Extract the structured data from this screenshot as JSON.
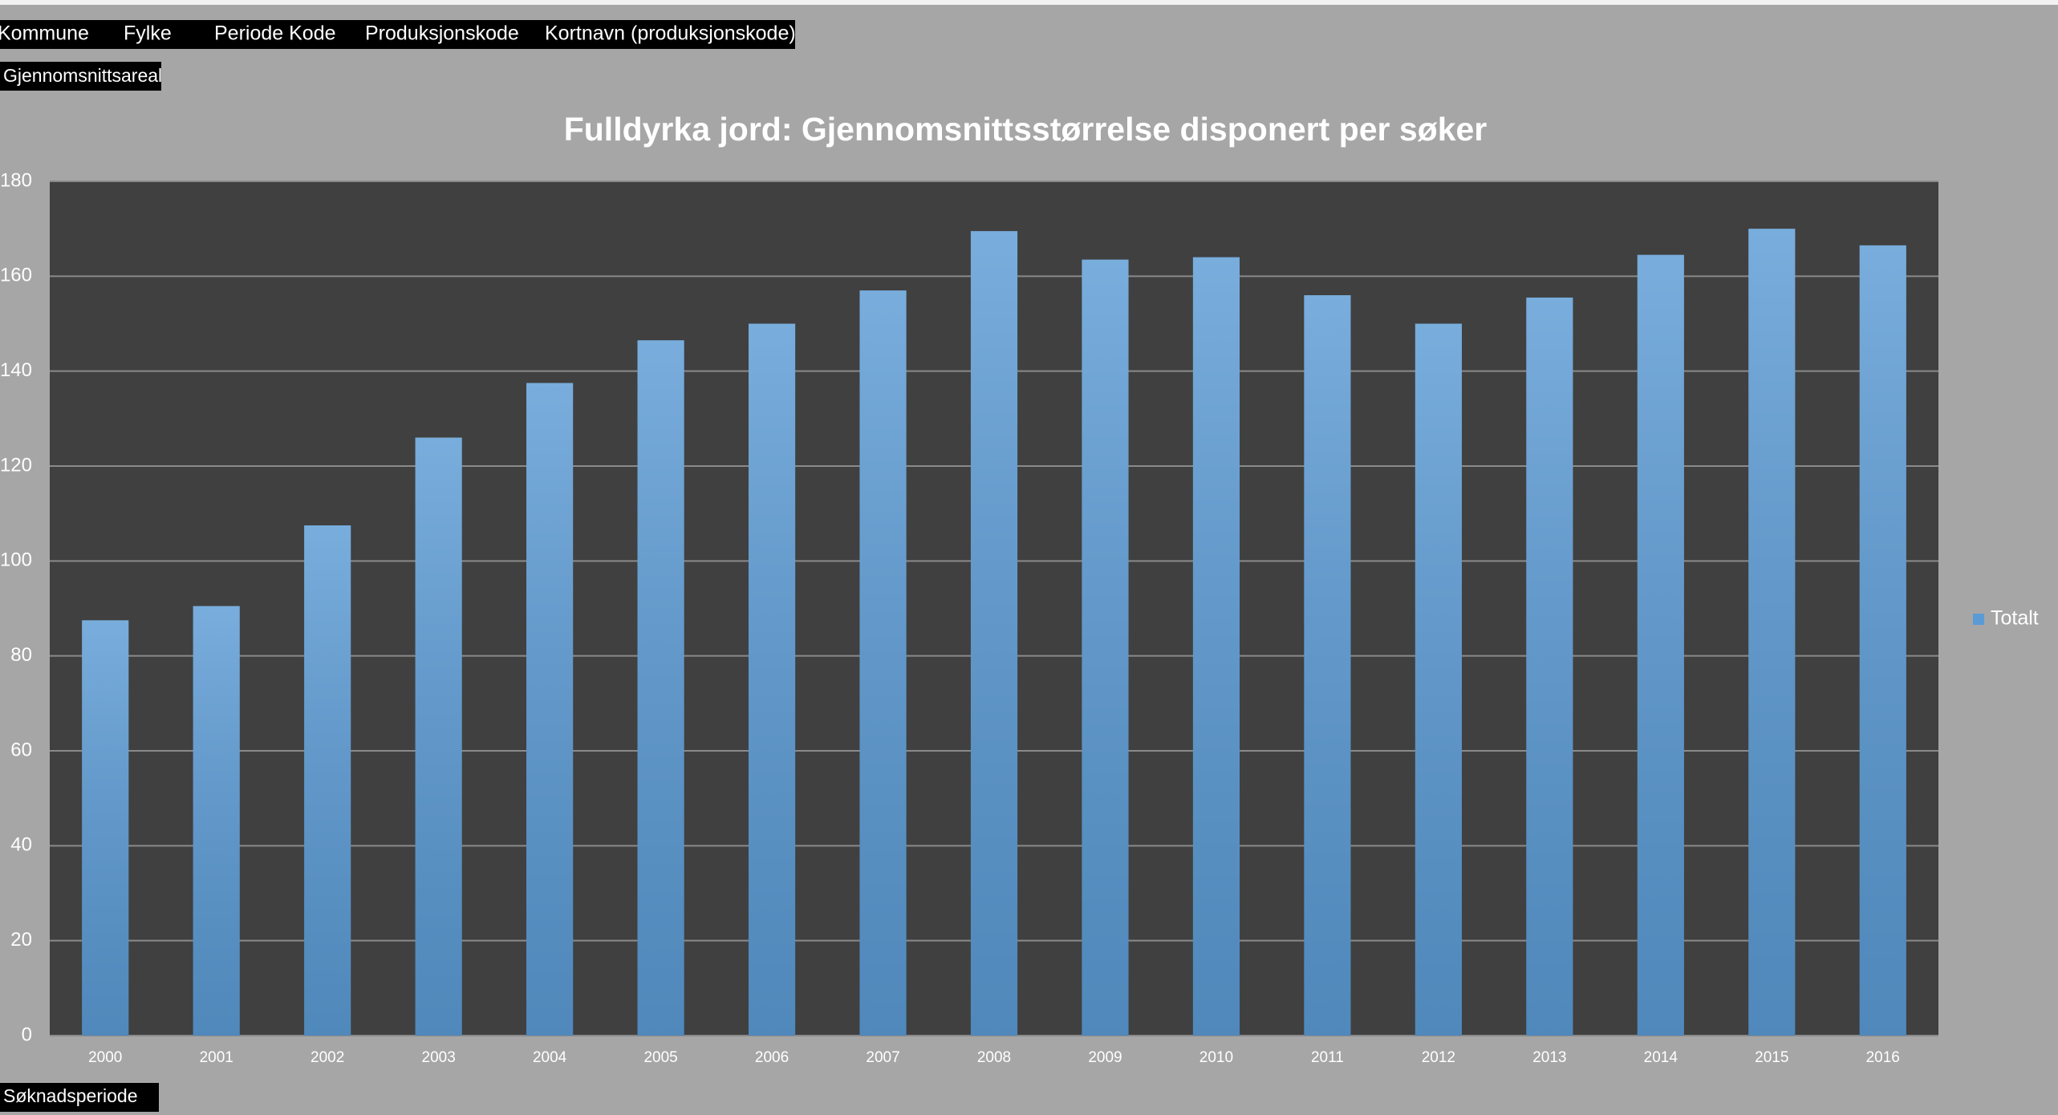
{
  "filter_buttons": [
    "Kommune",
    "Fylke",
    "Periode Kode",
    "Produksjonskode",
    "Kortnavn (produksjonskode)"
  ],
  "value_field": "Gjennomsnittsareal",
  "axis_field": "Søknadsperiode",
  "chart_data": {
    "type": "bar",
    "title": "Fulldyrka jord: Gjennomsnittsstørrelse disponert per søker",
    "categories": [
      "2000",
      "2001",
      "2002",
      "2003",
      "2004",
      "2005",
      "2006",
      "2007",
      "2008",
      "2009",
      "2010",
      "2011",
      "2012",
      "2013",
      "2014",
      "2015",
      "2016"
    ],
    "series": [
      {
        "name": "Totalt",
        "color": "#5b9bd5",
        "values": [
          87.5,
          90.5,
          107.5,
          126,
          137.5,
          146.5,
          150,
          157,
          169.5,
          163.5,
          164,
          156,
          150,
          155.5,
          164.5,
          170,
          166.5
        ]
      }
    ],
    "ylim": [
      0,
      180
    ],
    "yticks": [
      0,
      20,
      40,
      60,
      80,
      100,
      120,
      140,
      160,
      180
    ],
    "grid": true,
    "legend": "right"
  }
}
